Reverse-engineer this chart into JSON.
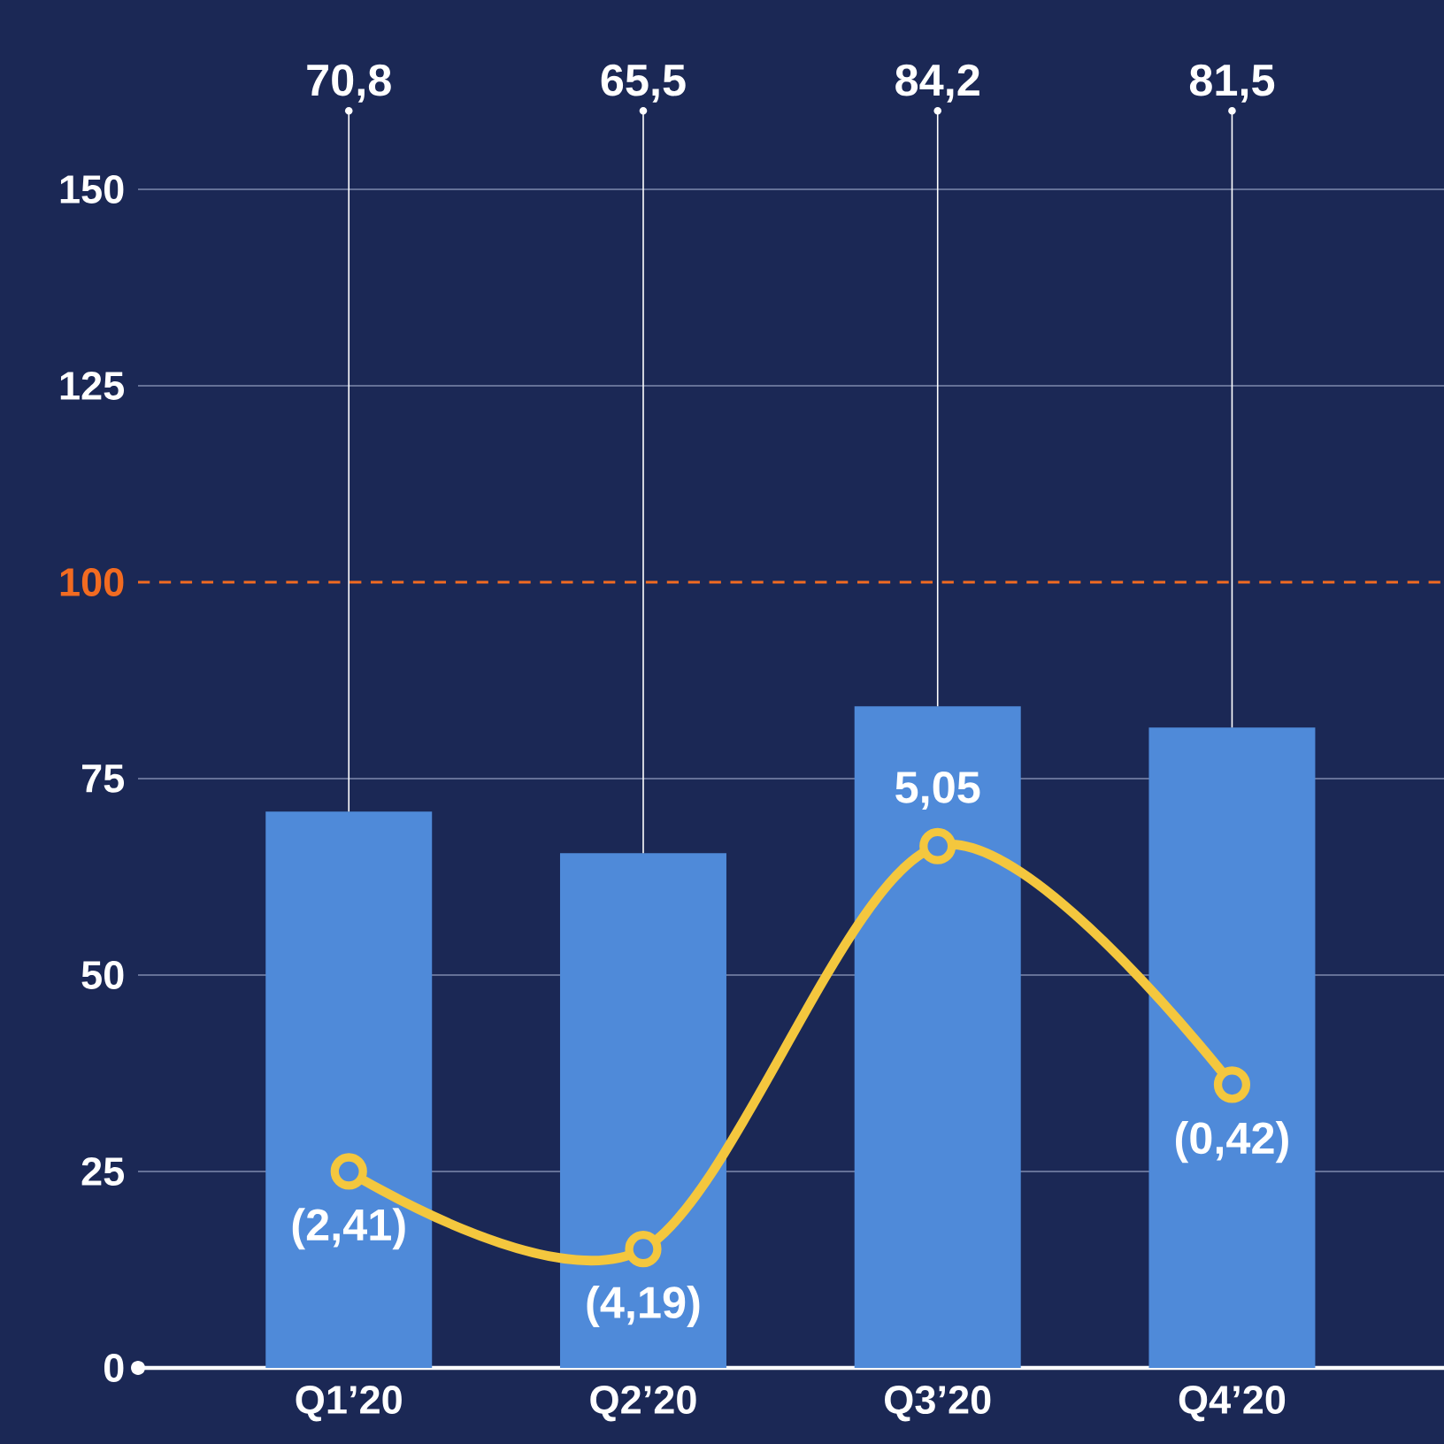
{
  "chart_data": {
    "type": "bar",
    "categories": [
      "Q1’20",
      "Q2’20",
      "Q3’20",
      "Q4’20"
    ],
    "series": [
      {
        "color": "#4f8ad9",
        "values": [
          70.8,
          65.5,
          84.2,
          81.5
        ],
        "value_labels": [
          "70,8",
          "65,5",
          "84,2",
          "81,5"
        ]
      },
      {
        "type": "line",
        "axis": "y2",
        "color": "#f4c73e",
        "values": [
          -2.41,
          -4.19,
          5.05,
          -0.42
        ],
        "value_labels": [
          "(2,41)",
          "(4,19)",
          "5,05",
          "(0,42)"
        ]
      }
    ],
    "marker": "circle",
    "ylim": [
      0,
      150
    ],
    "yticks": [
      0,
      25,
      50,
      75,
      125,
      150
    ],
    "grid": "y",
    "ref_lines": [
      {
        "axis": "y",
        "value": 100,
        "label": "100",
        "color": "#f26b21",
        "line_style": "dashed"
      }
    ]
  }
}
